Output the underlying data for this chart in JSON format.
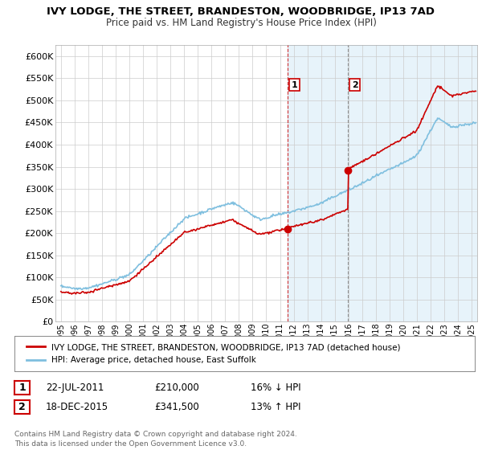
{
  "title": "IVY LODGE, THE STREET, BRANDESTON, WOODBRIDGE, IP13 7AD",
  "subtitle": "Price paid vs. HM Land Registry's House Price Index (HPI)",
  "ylabel_ticks": [
    "£0",
    "£50K",
    "£100K",
    "£150K",
    "£200K",
    "£250K",
    "£300K",
    "£350K",
    "£400K",
    "£450K",
    "£500K",
    "£550K",
    "£600K"
  ],
  "ylim": [
    0,
    625000
  ],
  "xlim_start": 1994.6,
  "xlim_end": 2025.4,
  "hpi_color": "#7fbfdf",
  "price_color": "#cc0000",
  "marker1_date": 2011.55,
  "marker1_price": 210000,
  "marker2_date": 2015.96,
  "marker2_price": 341500,
  "vline1_x": 2011.55,
  "vline2_x": 2015.96,
  "legend_line1": "IVY LODGE, THE STREET, BRANDESTON, WOODBRIDGE, IP13 7AD (detached house)",
  "legend_line2": "HPI: Average price, detached house, East Suffolk",
  "table_row1": [
    "1",
    "22-JUL-2011",
    "£210,000",
    "16% ↓ HPI"
  ],
  "table_row2": [
    "2",
    "18-DEC-2015",
    "£341,500",
    "13% ↑ HPI"
  ],
  "footer": "Contains HM Land Registry data © Crown copyright and database right 2024.\nThis data is licensed under the Open Government Licence v3.0.",
  "background_color": "#ffffff",
  "shaded_region_start": 2011.55,
  "shaded_region_end": 2025.4
}
